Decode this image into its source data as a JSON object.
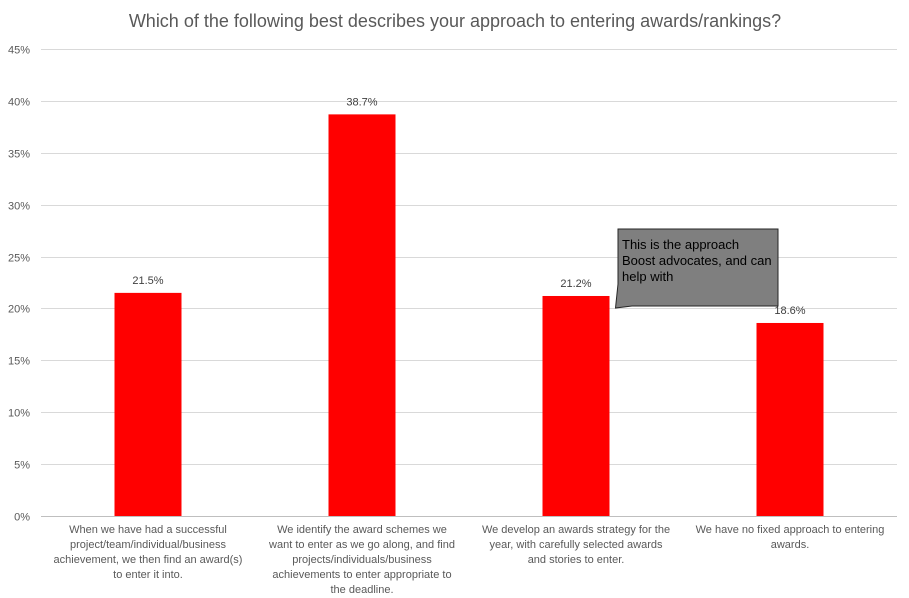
{
  "chart_data": {
    "type": "bar",
    "title": "Which of the following best describes your approach to entering awards/rankings?",
    "categories": [
      "When we have had a successful project/team/individual/business achievement, we then find an award(s) to enter it into.",
      "We identify the award schemes we want to enter as we go along, and find projects/individuals/business achievements to enter appropriate to the deadline.",
      "We develop an awards strategy for the year, with carefully selected awards and stories to enter.",
      "We have no fixed approach to entering awards."
    ],
    "values": [
      21.5,
      38.7,
      21.2,
      18.6
    ],
    "data_labels": [
      "21.5%",
      "38.7%",
      "21.2%",
      "18.6%"
    ],
    "ylim": [
      0,
      45
    ],
    "y_ticks": [
      "0%",
      "5%",
      "10%",
      "15%",
      "20%",
      "25%",
      "30%",
      "35%",
      "40%",
      "45%"
    ],
    "grid": true,
    "bar_color": "#ff0000",
    "callout": {
      "text": "This is the approach Boost advocates, and can help with",
      "fill": "#7f7f7f",
      "points_to_category": 2
    }
  }
}
